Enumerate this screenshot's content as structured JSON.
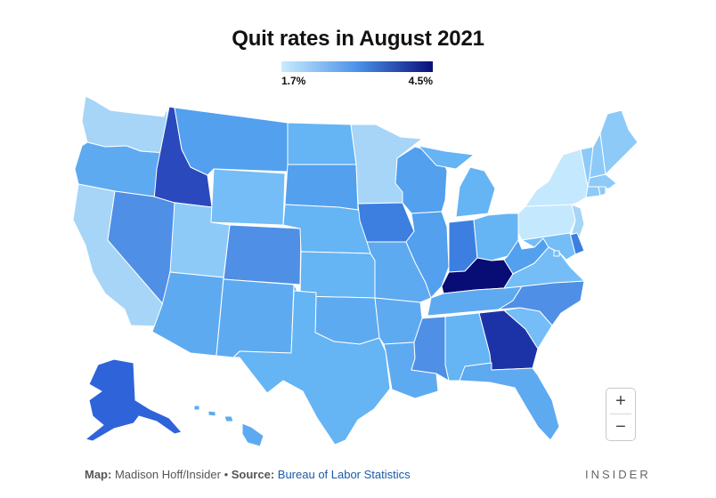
{
  "title": "Quit rates in August 2021",
  "legend": {
    "min_label": "1.7%",
    "max_label": "4.5%",
    "colors": [
      "#c9ecff",
      "#4b92e8",
      "#0a0f7a"
    ]
  },
  "zoom": {
    "in_label": "+",
    "out_label": "−"
  },
  "footer": {
    "map_label": "Map:",
    "map_credit": "Madison Hoff/Insider",
    "separator": " • ",
    "source_label": "Source:",
    "source": "Bureau of Labor Statistics"
  },
  "brand": "INSIDER",
  "map_data": {
    "metric": "Quit rate (%)",
    "scale": [
      1.7,
      4.5
    ],
    "states": [
      {
        "id": "WA",
        "color": "#a6d5f7"
      },
      {
        "id": "OR",
        "color": "#5eaaf1"
      },
      {
        "id": "CA",
        "color": "#a6d5f7"
      },
      {
        "id": "ID",
        "color": "#2a49bd"
      },
      {
        "id": "NV",
        "color": "#4f8fe6"
      },
      {
        "id": "UT",
        "color": "#8dcaf8"
      },
      {
        "id": "AZ",
        "color": "#5eaaf1"
      },
      {
        "id": "MT",
        "color": "#52a0ee"
      },
      {
        "id": "WY",
        "color": "#74bdf6"
      },
      {
        "id": "CO",
        "color": "#4f8fe6"
      },
      {
        "id": "NM",
        "color": "#5eaaf1"
      },
      {
        "id": "ND",
        "color": "#65b4f4"
      },
      {
        "id": "SD",
        "color": "#52a0ee"
      },
      {
        "id": "NE",
        "color": "#65b4f4"
      },
      {
        "id": "KS",
        "color": "#65b4f4"
      },
      {
        "id": "OK",
        "color": "#5eaaf1"
      },
      {
        "id": "TX",
        "color": "#65b4f4"
      },
      {
        "id": "MN",
        "color": "#a6d5f7"
      },
      {
        "id": "IA",
        "color": "#3d7fe0"
      },
      {
        "id": "MO",
        "color": "#5eaaf1"
      },
      {
        "id": "AR",
        "color": "#5eaaf1"
      },
      {
        "id": "LA",
        "color": "#5eaaf1"
      },
      {
        "id": "WI",
        "color": "#52a0ee"
      },
      {
        "id": "IL",
        "color": "#52a0ee"
      },
      {
        "id": "MI",
        "color": "#65b4f4"
      },
      {
        "id": "IN",
        "color": "#3d7fe0"
      },
      {
        "id": "OH",
        "color": "#65b4f4"
      },
      {
        "id": "KY",
        "color": "#080c75"
      },
      {
        "id": "TN",
        "color": "#5eaaf1"
      },
      {
        "id": "MS",
        "color": "#4f8fe6"
      },
      {
        "id": "AL",
        "color": "#65b4f4"
      },
      {
        "id": "GA",
        "color": "#1c33a8"
      },
      {
        "id": "FL",
        "color": "#5eaaf1"
      },
      {
        "id": "SC",
        "color": "#74bdf6"
      },
      {
        "id": "NC",
        "color": "#4f8fe6"
      },
      {
        "id": "VA",
        "color": "#74bdf6"
      },
      {
        "id": "WV",
        "color": "#52a0ee"
      },
      {
        "id": "PA",
        "color": "#c4e8fe"
      },
      {
        "id": "NY",
        "color": "#c4e8fe"
      },
      {
        "id": "ME",
        "color": "#8dcaf8"
      },
      {
        "id": "NH",
        "color": "#8dcaf8"
      },
      {
        "id": "VT",
        "color": "#8dcaf8"
      },
      {
        "id": "MA",
        "color": "#8dcaf8"
      },
      {
        "id": "CT",
        "color": "#8dcaf8"
      },
      {
        "id": "RI",
        "color": "#8dcaf8"
      },
      {
        "id": "NJ",
        "color": "#a6d5f7"
      },
      {
        "id": "DE",
        "color": "#3d7fe0"
      },
      {
        "id": "MD",
        "color": "#74bdf6"
      },
      {
        "id": "DC",
        "color": "#74bdf6"
      },
      {
        "id": "AK",
        "color": "#2f63d9"
      },
      {
        "id": "HI",
        "color": "#5eaaf1"
      }
    ]
  }
}
